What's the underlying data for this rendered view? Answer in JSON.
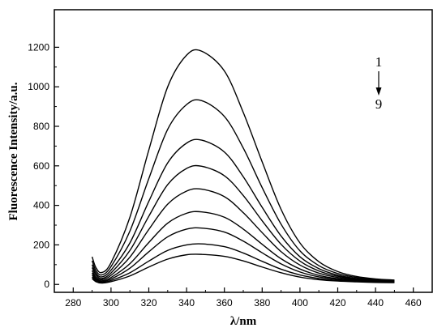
{
  "chart_data": {
    "type": "line",
    "xlabel": "λ/nm",
    "ylabel": "Fluorescence Intensity/a.u.",
    "xlim": [
      270,
      470
    ],
    "ylim": [
      -40,
      1390
    ],
    "xticks": [
      280,
      300,
      320,
      340,
      360,
      380,
      400,
      420,
      440,
      460
    ],
    "yticks": [
      0,
      200,
      400,
      600,
      800,
      1000,
      1200
    ],
    "grid": false,
    "x_range": [
      290,
      450
    ],
    "peak_x": 348,
    "annotation": {
      "start": "1",
      "end": "9",
      "arrow": "down"
    },
    "series": [
      {
        "label": "1",
        "x": [
          290,
          292,
          295,
          300,
          310,
          320,
          330,
          340,
          348,
          360,
          370,
          380,
          390,
          400,
          410,
          420,
          430,
          440,
          450
        ],
        "values": [
          140,
          85,
          60,
          110,
          340,
          680,
          1000,
          1160,
          1180,
          1080,
          870,
          620,
          380,
          210,
          115,
          65,
          40,
          28,
          22
        ]
      },
      {
        "label": "2",
        "x": [
          290,
          292,
          295,
          300,
          310,
          320,
          330,
          340,
          348,
          360,
          370,
          380,
          390,
          400,
          410,
          420,
          430,
          440,
          450
        ],
        "values": [
          120,
          70,
          48,
          90,
          270,
          535,
          785,
          910,
          930,
          850,
          690,
          490,
          305,
          170,
          95,
          55,
          35,
          25,
          20
        ]
      },
      {
        "label": "3",
        "x": [
          290,
          292,
          295,
          300,
          310,
          320,
          330,
          340,
          348,
          360,
          370,
          380,
          390,
          400,
          410,
          420,
          430,
          440,
          450
        ],
        "values": [
          100,
          58,
          38,
          72,
          210,
          420,
          615,
          715,
          730,
          670,
          545,
          390,
          245,
          140,
          80,
          47,
          30,
          22,
          18
        ]
      },
      {
        "label": "4",
        "x": [
          290,
          292,
          295,
          300,
          310,
          320,
          330,
          340,
          348,
          360,
          370,
          380,
          390,
          400,
          410,
          420,
          430,
          440,
          450
        ],
        "values": [
          85,
          48,
          30,
          58,
          172,
          345,
          505,
          587,
          598,
          550,
          450,
          322,
          203,
          118,
          68,
          41,
          27,
          20,
          16
        ]
      },
      {
        "label": "5",
        "x": [
          290,
          292,
          295,
          300,
          310,
          320,
          330,
          340,
          348,
          360,
          370,
          380,
          390,
          400,
          410,
          420,
          430,
          440,
          450
        ],
        "values": [
          70,
          38,
          24,
          46,
          138,
          278,
          406,
          472,
          482,
          444,
          363,
          262,
          166,
          98,
          57,
          35,
          24,
          18,
          15
        ]
      },
      {
        "label": "6",
        "x": [
          290,
          292,
          295,
          300,
          310,
          320,
          330,
          340,
          348,
          360,
          370,
          380,
          390,
          400,
          410,
          420,
          430,
          440,
          450
        ],
        "values": [
          58,
          30,
          18,
          35,
          105,
          212,
          310,
          360,
          367,
          340,
          280,
          203,
          130,
          78,
          46,
          29,
          21,
          16,
          14
        ]
      },
      {
        "label": "7",
        "x": [
          290,
          292,
          295,
          300,
          310,
          320,
          330,
          340,
          348,
          360,
          370,
          380,
          390,
          400,
          410,
          420,
          430,
          440,
          450
        ],
        "values": [
          48,
          24,
          14,
          27,
          82,
          165,
          241,
          280,
          285,
          265,
          219,
          160,
          104,
          63,
          38,
          25,
          18,
          14,
          12
        ]
      },
      {
        "label": "8",
        "x": [
          290,
          292,
          295,
          300,
          310,
          320,
          330,
          340,
          348,
          360,
          370,
          380,
          390,
          400,
          410,
          420,
          430,
          440,
          450
        ],
        "values": [
          38,
          18,
          10,
          20,
          59,
          118,
          172,
          200,
          205,
          191,
          159,
          117,
          77,
          48,
          30,
          20,
          15,
          12,
          10
        ]
      },
      {
        "label": "9",
        "x": [
          290,
          292,
          295,
          300,
          310,
          320,
          330,
          340,
          348,
          360,
          370,
          380,
          390,
          400,
          410,
          420,
          430,
          440,
          450
        ],
        "values": [
          30,
          14,
          7,
          14,
          43,
          88,
          128,
          150,
          152,
          142,
          119,
          88,
          59,
          37,
          24,
          17,
          13,
          10,
          9
        ]
      }
    ]
  }
}
